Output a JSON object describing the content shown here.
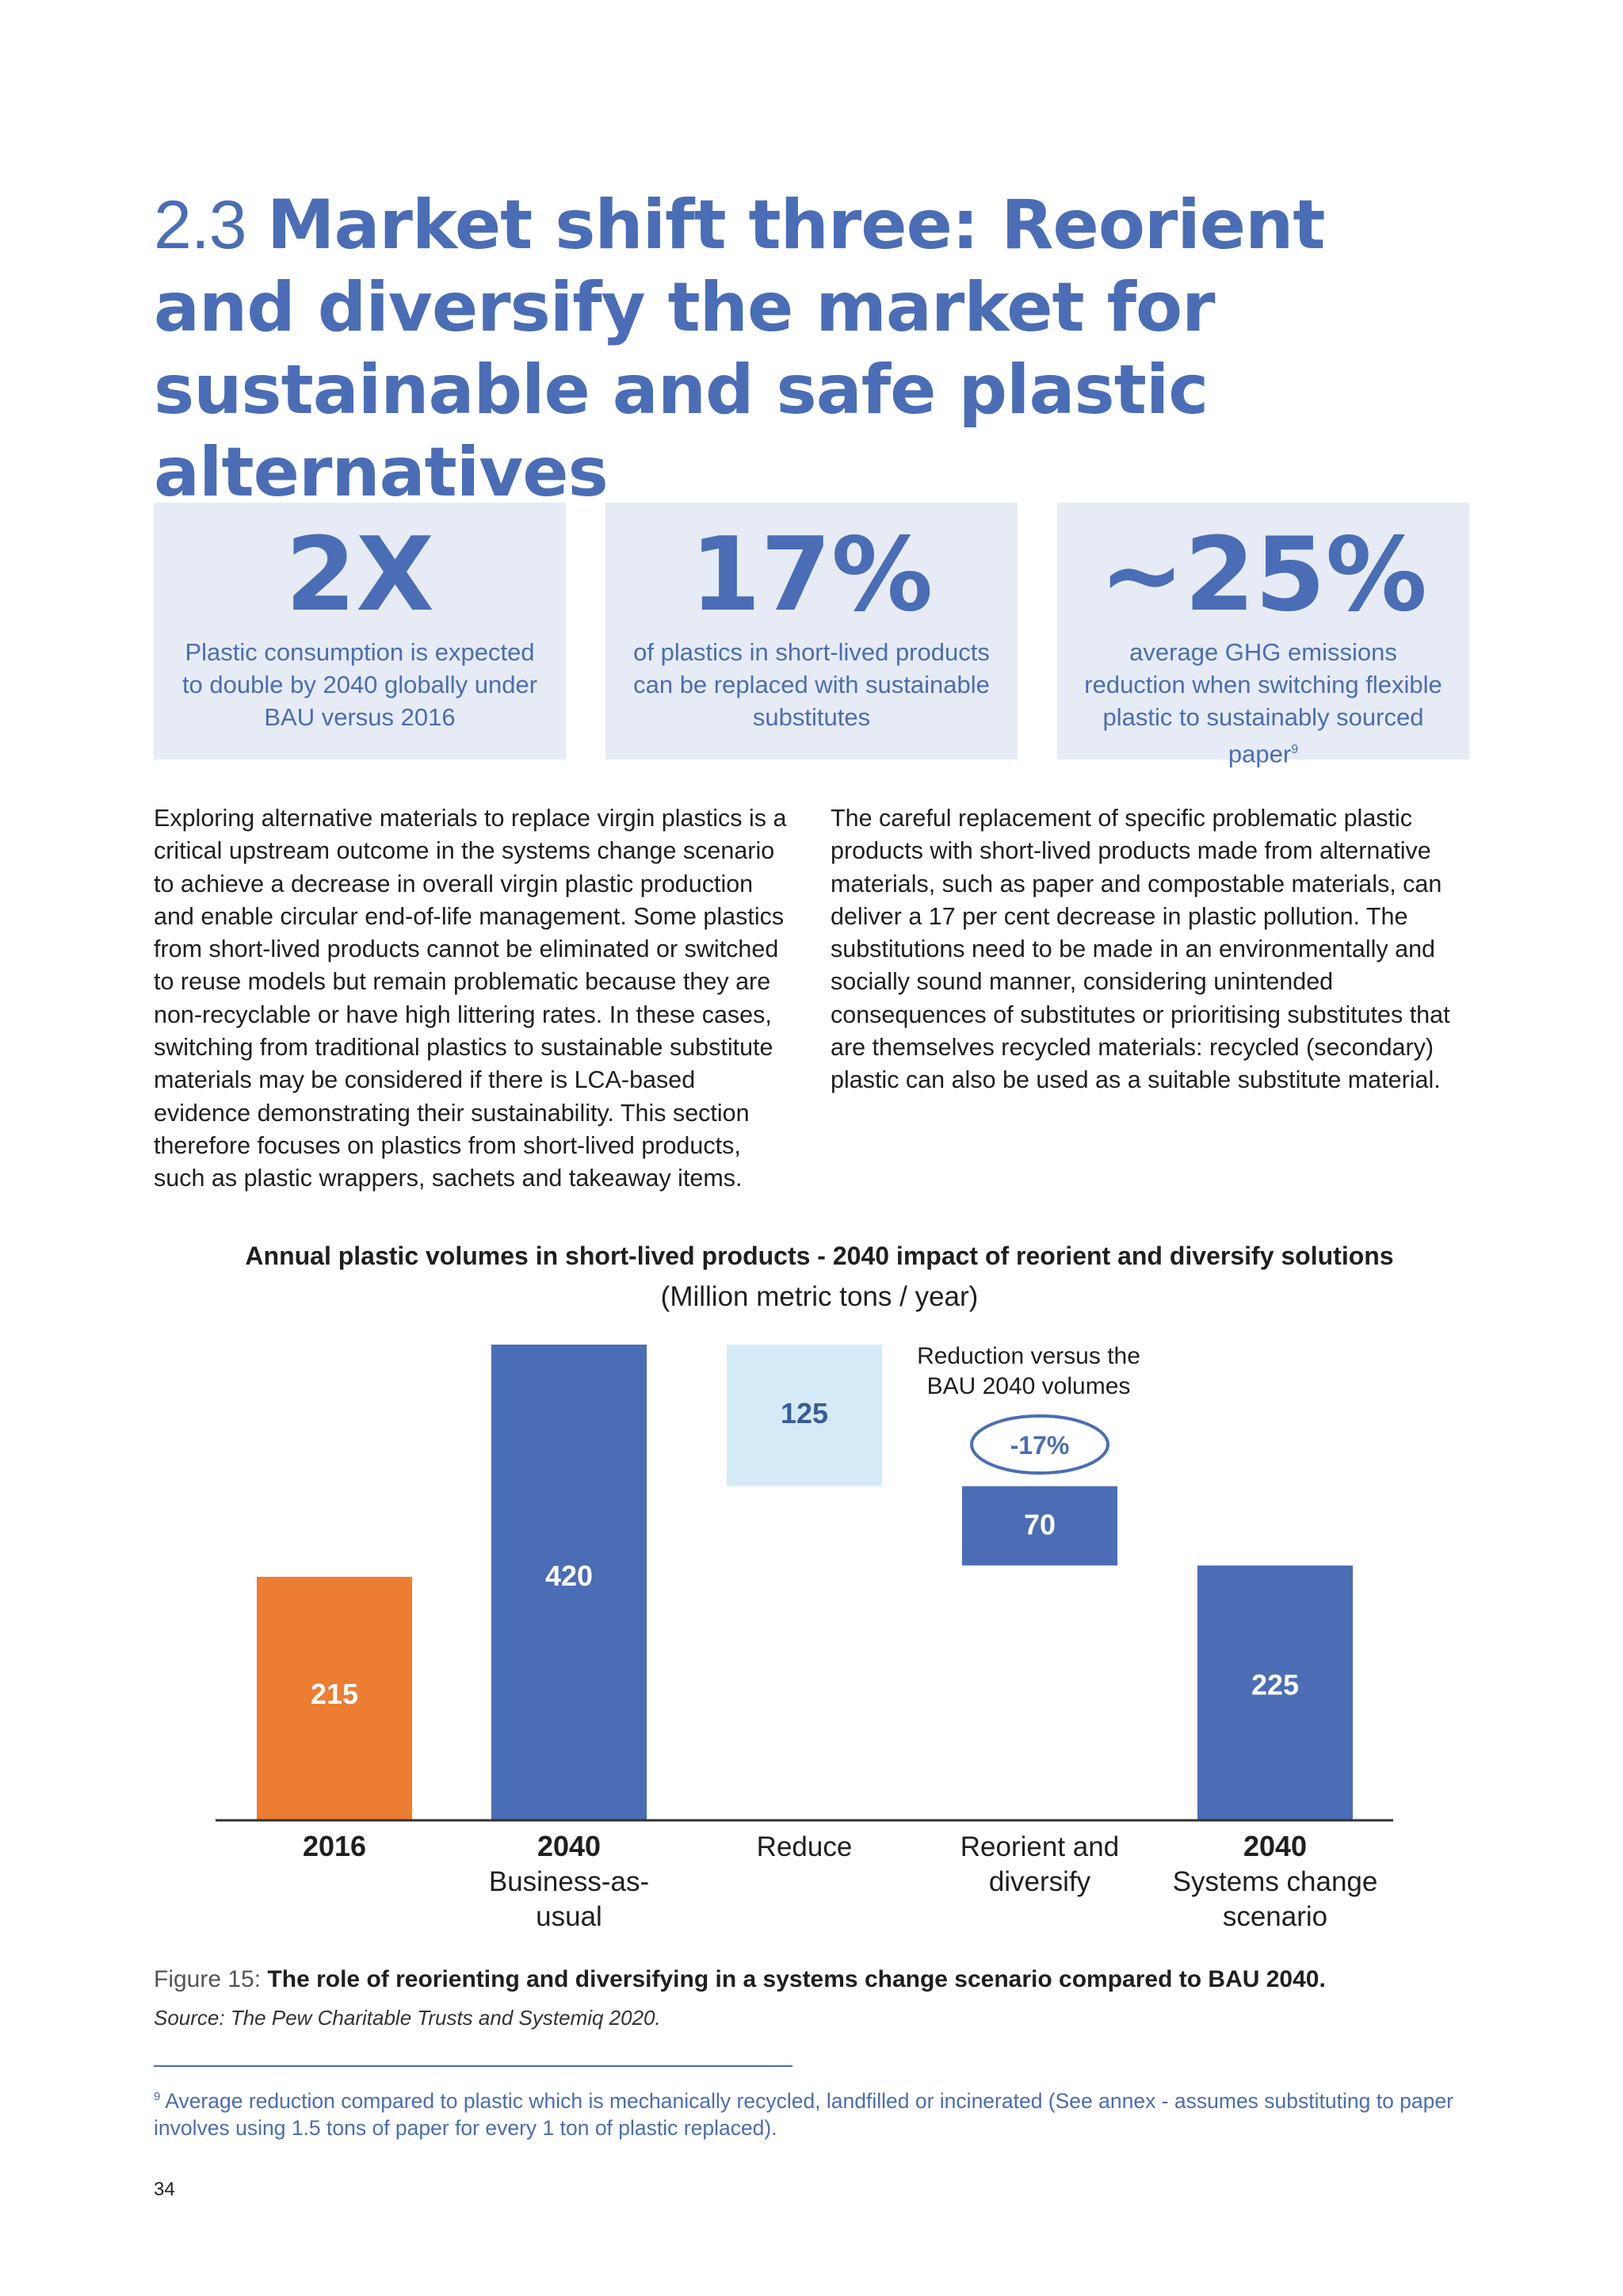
{
  "heading": {
    "number": "2.3",
    "text": "Market shift three: Reorient and diversify the market for sustainable and safe plastic alternatives"
  },
  "stats": [
    {
      "value": "2X",
      "description": "Plastic consumption is expected to double by 2040 globally under BAU versus 2016"
    },
    {
      "value": "17%",
      "description": "of plastics in short-lived products can be replaced with sustainable substitutes"
    },
    {
      "value": "~25%",
      "description": "average GHG emissions reduction when switching flexible plastic to sustainably sourced paper",
      "footnote_ref": "9"
    }
  ],
  "body": {
    "left": "Exploring alternative materials to replace virgin plastics is a critical upstream outcome in the systems change scenario to achieve a decrease in overall virgin plastic production and enable circular end-of-life management. Some plastics from short-lived products cannot be eliminated or switched to reuse models but remain problematic because they are non-recyclable or have high littering rates. In these cases, switching from traditional plastics to sustainable substitute materials may be considered if there is LCA-based evidence demonstrating their sustainability. This section therefore focuses on plastics from short-lived products, such as plastic wrappers, sachets and takeaway items.",
    "right": "The careful replacement of specific problematic plastic products with short-lived products made from alternative materials, such as paper and compostable materials, can deliver a 17 per cent decrease in plastic pollution. The substitutions need to be made in an environmentally and socially sound manner, considering unintended consequences of substitutes or prioritising substitutes that are themselves recycled materials: recycled (secondary) plastic can also be used as a suitable substitute material."
  },
  "chart_data": {
    "type": "bar",
    "variant": "waterfall",
    "title": "Annual plastic volumes in short-lived products - 2040 impact of reorient and diversify solutions",
    "subtitle": "(Million metric tons / year)",
    "categories": [
      {
        "bold": "2016",
        "sub": ""
      },
      {
        "bold": "2040",
        "sub": "Business-as-usual"
      },
      {
        "bold": "",
        "sub": "Reduce"
      },
      {
        "bold": "",
        "sub": "Reorient and diversify"
      },
      {
        "bold": "2040",
        "sub": "Systems change scenario"
      }
    ],
    "bars": [
      {
        "label": "215",
        "base": 0,
        "top": 215,
        "color": "#ec7d32",
        "label_color": "#ffffff"
      },
      {
        "label": "420",
        "base": 0,
        "top": 420,
        "color": "#4a6db6",
        "label_color": "#ffffff"
      },
      {
        "label": "125",
        "base": 295,
        "top": 420,
        "color": "#d4ebf7",
        "label_color": "#3b5a99"
      },
      {
        "label": "70",
        "base": 225,
        "top": 295,
        "color": "#4a6db6",
        "label_color": "#ffffff"
      },
      {
        "label": "225",
        "base": 0,
        "top": 225,
        "color": "#4a6db6",
        "label_color": "#ffffff"
      }
    ],
    "annotation": {
      "text_line1": "Reduction versus the",
      "text_line2": "BAU 2040 volumes",
      "badge": "-17%"
    },
    "ylim": [
      0,
      420
    ],
    "grid": false
  },
  "figure": {
    "lead": "Figure 15:",
    "caption": "The role of reorienting and diversifying in a systems change scenario compared to BAU 2040.",
    "source": "Source: The Pew Charitable Trusts and Systemiq 2020."
  },
  "footnote": {
    "marker": "9",
    "text": "Average reduction compared to plastic which is mechanically recycled, landfilled or incinerated (See annex - assumes substituting to paper involves using 1.5 tons of paper for every 1 ton of plastic replaced)."
  },
  "page_number": "34",
  "colors": {
    "accent": "#4a6db6",
    "orange": "#ec7d32",
    "light_blue": "#d4ebf7",
    "stat_bg": "#e6ebf5"
  }
}
